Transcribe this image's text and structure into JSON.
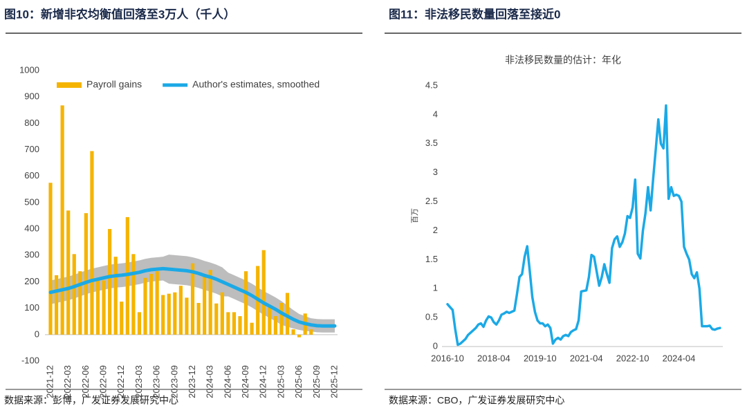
{
  "chart_data": [
    {
      "type": "bar",
      "title": "图10：新增非农均衡值回落至3万人（千人）",
      "source": "数据来源：彭博，广发证券发展研究中心",
      "categories": [
        "2021-12",
        null,
        null,
        "2022-03",
        null,
        null,
        "2022-06",
        null,
        null,
        "2022-09",
        null,
        null,
        "2022-12",
        null,
        null,
        "2023-03",
        null,
        null,
        "2023-06",
        null,
        null,
        "2023-09",
        null,
        null,
        "2023-12",
        null,
        null,
        "2024-03",
        null,
        null,
        "2024-06",
        null,
        null,
        "2024-09",
        null,
        null,
        "2024-12",
        null,
        null,
        "2025-03",
        null,
        null,
        "2025-06",
        null,
        null,
        "2025-09",
        null,
        null,
        "2025-12"
      ],
      "series": [
        {
          "name": "Payroll gains",
          "type": "bar",
          "color": "#f5b400",
          "values": [
            575,
            225,
            868,
            470,
            305,
            240,
            460,
            695,
            210,
            205,
            400,
            295,
            125,
            445,
            305,
            85,
            215,
            230,
            240,
            150,
            155,
            160,
            185,
            140,
            270,
            120,
            220,
            245,
            118,
            160,
            85,
            85,
            70,
            240,
            45,
            260,
            320,
            105,
            70,
            120,
            158,
            20,
            -10,
            80,
            20,
            null,
            null,
            null,
            null
          ]
        },
        {
          "name": "Author's estimates, smoothed",
          "type": "line",
          "color": "#1ba9e6",
          "values": [
            160,
            165,
            170,
            175,
            182,
            190,
            198,
            205,
            210,
            215,
            220,
            223,
            225,
            228,
            232,
            236,
            242,
            246,
            248,
            250,
            248,
            246,
            244,
            242,
            238,
            232,
            224,
            218,
            210,
            200,
            190,
            180,
            170,
            160,
            148,
            134,
            120,
            108,
            96,
            82,
            70,
            58,
            48,
            42,
            37,
            34,
            33,
            33,
            33
          ]
        }
      ],
      "band": {
        "color": "#bdbdbd",
        "upper": [
          205,
          210,
          215,
          220,
          227,
          235,
          243,
          250,
          255,
          260,
          265,
          268,
          270,
          273,
          277,
          281,
          287,
          291,
          293,
          295,
          303,
          301,
          299,
          297,
          293,
          287,
          279,
          273,
          265,
          255,
          235,
          225,
          215,
          205,
          193,
          179,
          165,
          153,
          141,
          127,
          110,
          93,
          78,
          70,
          62,
          59,
          58,
          58,
          58
        ],
        "lower": [
          115,
          120,
          125,
          130,
          137,
          145,
          153,
          160,
          165,
          170,
          175,
          178,
          180,
          183,
          187,
          191,
          197,
          201,
          203,
          205,
          193,
          191,
          189,
          187,
          183,
          177,
          169,
          163,
          155,
          145,
          145,
          135,
          125,
          115,
          103,
          89,
          75,
          63,
          51,
          37,
          30,
          23,
          18,
          14,
          12,
          9,
          8,
          8,
          8
        ]
      },
      "ylim": [
        -100,
        1000
      ],
      "yticks": [
        -100,
        0,
        100,
        200,
        300,
        400,
        500,
        600,
        700,
        800,
        900,
        1000
      ],
      "legend": "top-left",
      "grid": false
    },
    {
      "type": "line",
      "title": "图11：非法移民数量回落至接近0",
      "subtitle": "非法移民数量的估计：年化",
      "ylabel": "百万",
      "source": "数据来源：CBO，广发证券发展研究中心",
      "categories": [
        "2016-10",
        null,
        null,
        null,
        null,
        null,
        null,
        null,
        null,
        null,
        null,
        null,
        null,
        null,
        null,
        null,
        null,
        null,
        "2018-04",
        null,
        null,
        null,
        null,
        null,
        null,
        null,
        null,
        null,
        null,
        null,
        null,
        null,
        null,
        null,
        null,
        null,
        "2019-10",
        null,
        null,
        null,
        null,
        null,
        null,
        null,
        null,
        null,
        null,
        null,
        null,
        null,
        null,
        null,
        null,
        null,
        "2021-04",
        null,
        null,
        null,
        null,
        null,
        null,
        null,
        null,
        null,
        null,
        null,
        null,
        null,
        null,
        null,
        null,
        null,
        "2022-10",
        null,
        null,
        null,
        null,
        null,
        null,
        null,
        null,
        null,
        null,
        null,
        null,
        null,
        null,
        null,
        null,
        null,
        "2024-04",
        null,
        null,
        null,
        null,
        null,
        null,
        null,
        null,
        null,
        null,
        null,
        null,
        null,
        null,
        null,
        null
      ],
      "series": [
        {
          "type": "line",
          "color": "#1ba9e6",
          "values": [
            0.73,
            0.68,
            0.63,
            0.3,
            0.03,
            0.05,
            0.09,
            0.13,
            0.2,
            0.24,
            0.28,
            0.32,
            0.38,
            0.4,
            0.34,
            0.45,
            0.52,
            0.5,
            0.42,
            0.38,
            0.45,
            0.55,
            0.57,
            0.6,
            0.58,
            0.6,
            0.62,
            0.9,
            1.2,
            1.25,
            1.55,
            1.73,
            1.3,
            0.85,
            0.6,
            0.45,
            0.4,
            0.4,
            0.35,
            0.38,
            0.32,
            0.05,
            0.12,
            0.15,
            0.12,
            0.18,
            0.2,
            0.18,
            0.25,
            0.28,
            0.3,
            0.45,
            0.95,
            0.96,
            0.97,
            1.2,
            1.58,
            1.55,
            1.3,
            1.05,
            1.2,
            1.42,
            1.25,
            1.1,
            1.7,
            1.85,
            1.9,
            1.72,
            1.8,
            1.95,
            2.25,
            2.22,
            2.4,
            2.88,
            1.6,
            1.52,
            2.0,
            2.3,
            2.75,
            2.35,
            2.9,
            3.4,
            3.92,
            3.5,
            3.42,
            4.16,
            2.55,
            2.75,
            2.6,
            2.62,
            2.6,
            2.5,
            1.72,
            1.6,
            1.5,
            1.25,
            1.18,
            1.28,
            1.0,
            0.35,
            0.35,
            0.35,
            0.36,
            0.3,
            0.29,
            0.31,
            0.32
          ]
        }
      ],
      "ylim": [
        0,
        4.5
      ],
      "yticks": [
        0,
        0.5,
        1,
        1.5,
        2,
        2.5,
        3,
        3.5,
        4,
        4.5
      ],
      "grid": false
    }
  ]
}
